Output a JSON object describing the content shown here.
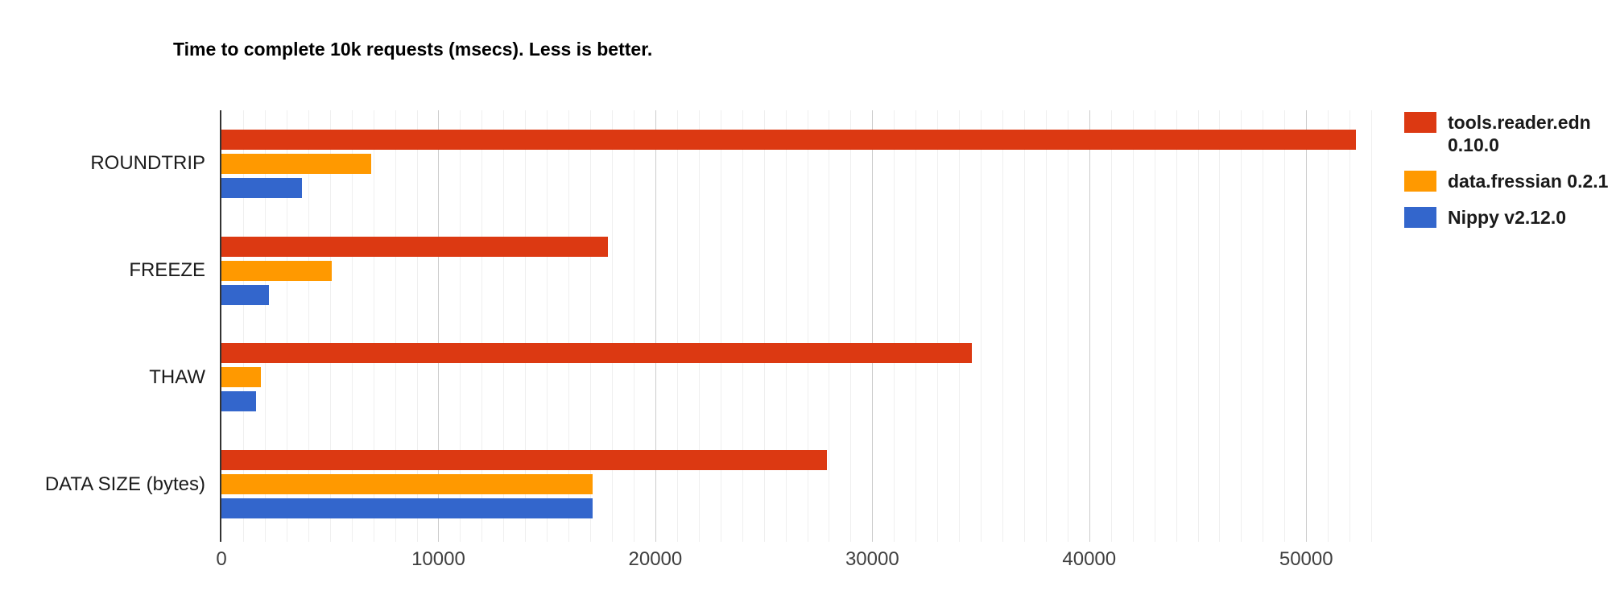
{
  "title": "Time to complete 10k requests (msecs). Less is better.",
  "chart_data": {
    "type": "bar",
    "orientation": "horizontal",
    "title": "Time to complete 10k requests (msecs). Less is better.",
    "categories": [
      "ROUNDTRIP",
      "FREEZE",
      "THAW",
      "DATA SIZE (bytes)"
    ],
    "series": [
      {
        "name": "tools.reader.edn 0.10.0",
        "color": "#dc3912",
        "values": [
          52300,
          17800,
          34600,
          27900
        ]
      },
      {
        "name": "data.fressian 0.2.1",
        "color": "#ff9900",
        "values": [
          6900,
          5100,
          1800,
          17100
        ]
      },
      {
        "name": "Nippy v2.12.0",
        "color": "#3366cc",
        "values": [
          3700,
          2200,
          1600,
          17100
        ]
      }
    ],
    "x_axis": {
      "min": 0,
      "max": 54000,
      "tick_step": 10000,
      "minor_gridline_step": 1000,
      "tick_values": [
        0,
        10000,
        20000,
        30000,
        40000,
        50000
      ],
      "tick_labels": [
        "0",
        "10000",
        "20000",
        "30000",
        "40000",
        "50000"
      ]
    },
    "grid": true,
    "legend_position": "right",
    "colors": {
      "axis_line": "#333333",
      "major_gridline": "#cccccc",
      "minor_gridline": "#efefef",
      "tick_label": "#404040",
      "category_label": "#1c1c1c"
    }
  }
}
